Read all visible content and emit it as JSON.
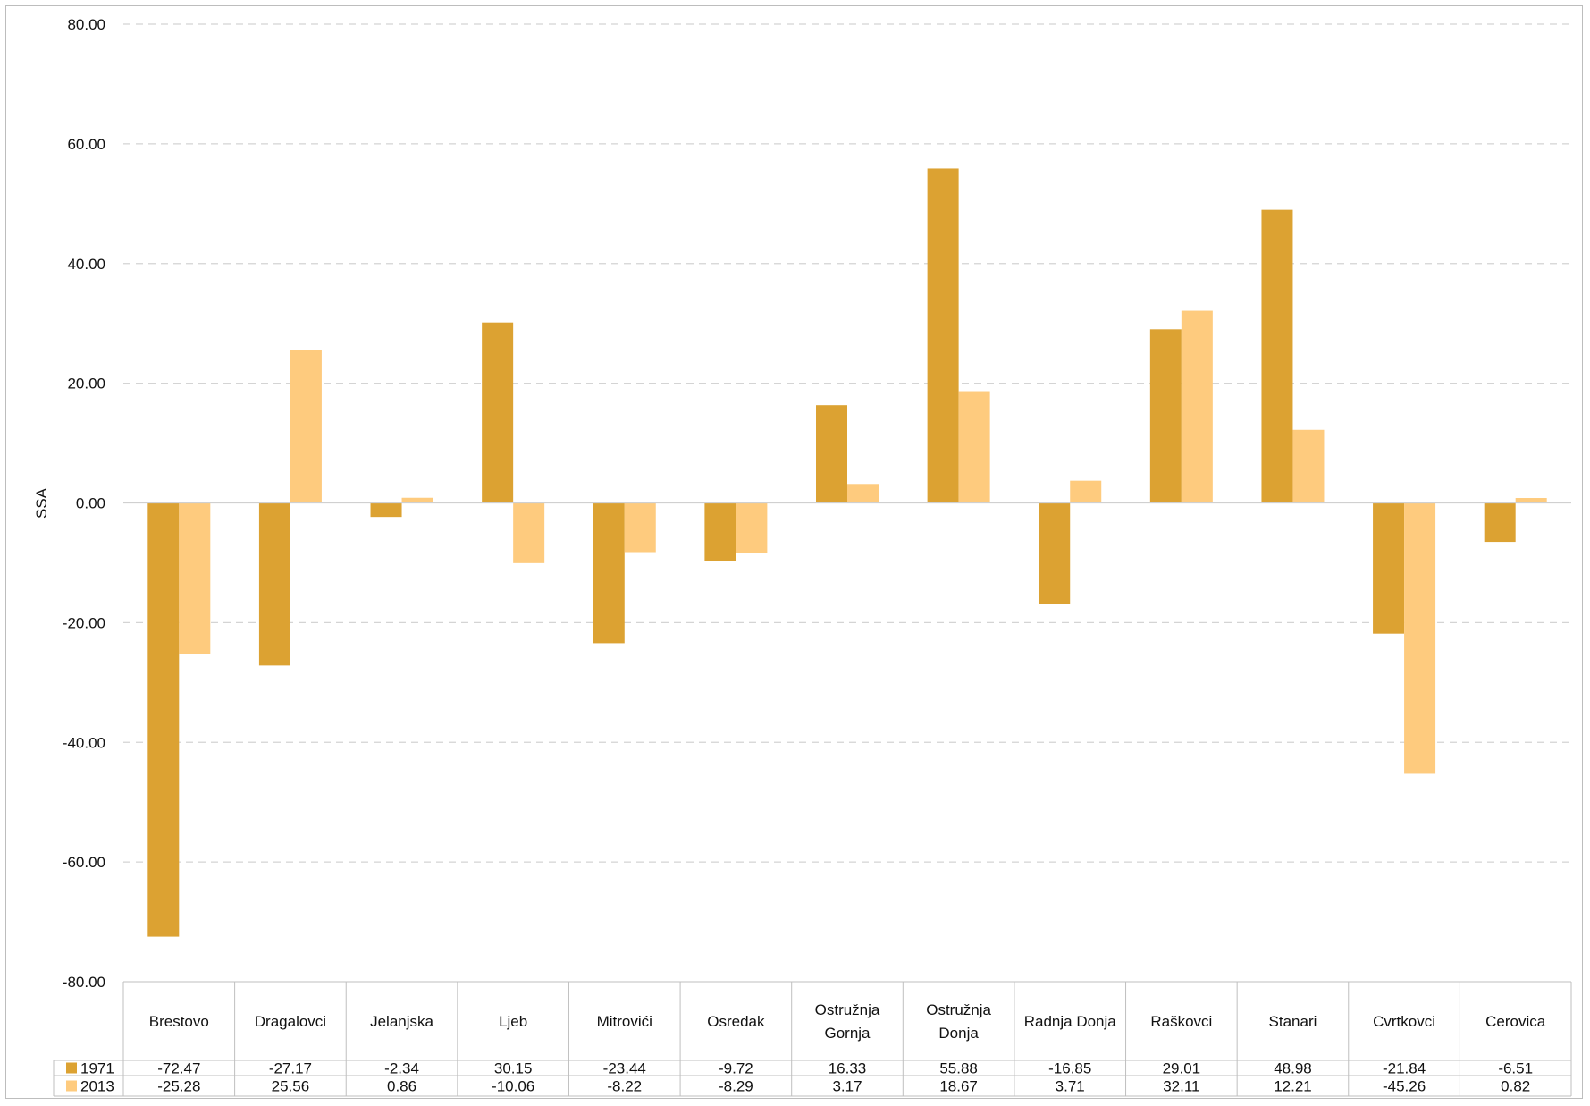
{
  "chart_data": {
    "type": "bar",
    "ylabel": "SSA",
    "ylim": [
      -80,
      80
    ],
    "yticks": [
      "80.00",
      "60.00",
      "40.00",
      "20.00",
      "0.00",
      "-20.00",
      "-40.00",
      "-60.00",
      "-80.00"
    ],
    "ytick_values": [
      80,
      60,
      40,
      20,
      0,
      -20,
      -40,
      -60,
      -80
    ],
    "grid": true,
    "legend": "data-table",
    "categories": [
      [
        "Brestovo"
      ],
      [
        "Dragalovci"
      ],
      [
        "Jelanjska"
      ],
      [
        "Ljeb"
      ],
      [
        "Mitrovići"
      ],
      [
        "Osredak"
      ],
      [
        "Ostružnja",
        "Gornja"
      ],
      [
        "Ostružnja",
        "Donja"
      ],
      [
        "Radnja Donja"
      ],
      [
        "Raškovci"
      ],
      [
        "Stanari"
      ],
      [
        "Cvrtkovci"
      ],
      [
        "Cerovica"
      ]
    ],
    "series": [
      {
        "name": "1971",
        "color": "#DCA232",
        "values": [
          -72.47,
          -27.17,
          -2.34,
          30.15,
          -23.44,
          -9.72,
          16.33,
          55.88,
          -16.85,
          29.01,
          48.98,
          -21.84,
          -6.51
        ],
        "labels": [
          "-72.47",
          "-27.17",
          "-2.34",
          "30.15",
          "-23.44",
          "-9.72",
          "16.33",
          "55.88",
          "-16.85",
          "29.01",
          "48.98",
          "-21.84",
          "-6.51"
        ]
      },
      {
        "name": "2013",
        "color": "#FECB7E",
        "values": [
          -25.28,
          25.56,
          0.86,
          -10.06,
          -8.22,
          -8.29,
          3.17,
          18.67,
          3.71,
          32.11,
          12.21,
          -45.26,
          0.82
        ],
        "labels": [
          "-25.28",
          "25.56",
          "0.86",
          "-10.06",
          "-8.22",
          "-8.29",
          "3.17",
          "18.67",
          "3.71",
          "32.11",
          "12.21",
          "-45.26",
          "0.82"
        ]
      }
    ]
  }
}
